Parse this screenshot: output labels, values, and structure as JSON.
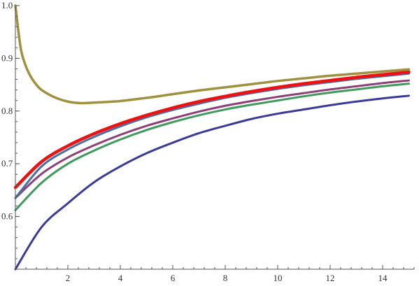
{
  "chart_data": {
    "type": "line",
    "title": "",
    "xlabel": "",
    "ylabel": "",
    "xlim": [
      0,
      15.2
    ],
    "ylim": [
      0.5,
      1.0
    ],
    "grid": false,
    "x_ticks": [
      2,
      4,
      6,
      8,
      10,
      12,
      14
    ],
    "x_tick_labels": [
      "2",
      "4",
      "6",
      "8",
      "10",
      "12",
      "14"
    ],
    "x_minor_step": 0.4,
    "y_ticks": [
      0.6,
      0.7,
      0.8,
      0.9,
      1.0
    ],
    "y_tick_labels": [
      "0.6",
      "0.7",
      "0.8",
      "0.9",
      "1.0"
    ],
    "y_minor_step": 0.02,
    "series": [
      {
        "color": "#3a3a9a",
        "width": 3,
        "x": [
          0,
          1,
          2,
          3,
          4,
          5,
          6,
          7,
          8,
          9,
          10,
          11,
          12,
          13,
          14,
          15
        ],
        "y": [
          0.5,
          0.58,
          0.625,
          0.665,
          0.695,
          0.72,
          0.74,
          0.758,
          0.772,
          0.785,
          0.795,
          0.803,
          0.811,
          0.818,
          0.824,
          0.829
        ]
      },
      {
        "color": "#3f9a5c",
        "width": 3,
        "x": [
          0,
          1,
          2,
          3,
          4,
          5,
          6,
          7,
          8,
          9,
          10,
          11,
          12,
          13,
          14,
          15
        ],
        "y": [
          0.612,
          0.664,
          0.7,
          0.725,
          0.746,
          0.764,
          0.779,
          0.792,
          0.803,
          0.812,
          0.82,
          0.828,
          0.835,
          0.841,
          0.847,
          0.852
        ]
      },
      {
        "color": "#8e3f76",
        "width": 3,
        "x": [
          0,
          1,
          2,
          3,
          4,
          5,
          6,
          7,
          8,
          9,
          10,
          11,
          12,
          13,
          14,
          15
        ],
        "y": [
          0.635,
          0.681,
          0.712,
          0.735,
          0.755,
          0.772,
          0.786,
          0.799,
          0.81,
          0.819,
          0.827,
          0.834,
          0.841,
          0.847,
          0.853,
          0.858
        ]
      },
      {
        "color": "#4a6fa5",
        "width": 3,
        "x": [
          0,
          1,
          2,
          3,
          4,
          5,
          6,
          7,
          8,
          9,
          10,
          11,
          12,
          13,
          14,
          15
        ],
        "y": [
          0.635,
          0.695,
          0.727,
          0.751,
          0.771,
          0.788,
          0.802,
          0.814,
          0.825,
          0.834,
          0.842,
          0.849,
          0.855,
          0.861,
          0.866,
          0.871
        ]
      },
      {
        "color": "#ee1111",
        "width": 4.5,
        "x": [
          0,
          1,
          2,
          3,
          4,
          5,
          6,
          7,
          8,
          9,
          10,
          11,
          12,
          13,
          14,
          15
        ],
        "y": [
          0.655,
          0.704,
          0.734,
          0.757,
          0.776,
          0.792,
          0.806,
          0.818,
          0.828,
          0.837,
          0.845,
          0.852,
          0.858,
          0.864,
          0.869,
          0.874
        ]
      },
      {
        "color": "#a0913f",
        "width": 3.5,
        "x": [
          0,
          0.2,
          0.4,
          0.6,
          0.8,
          1,
          1.5,
          2,
          2.5,
          3,
          4,
          5,
          6,
          7,
          8,
          9,
          10,
          11,
          12,
          13,
          14,
          15
        ],
        "y": [
          1.0,
          0.92,
          0.885,
          0.864,
          0.85,
          0.84,
          0.826,
          0.818,
          0.815,
          0.816,
          0.819,
          0.825,
          0.832,
          0.839,
          0.845,
          0.851,
          0.857,
          0.862,
          0.867,
          0.871,
          0.875,
          0.879
        ]
      }
    ]
  }
}
